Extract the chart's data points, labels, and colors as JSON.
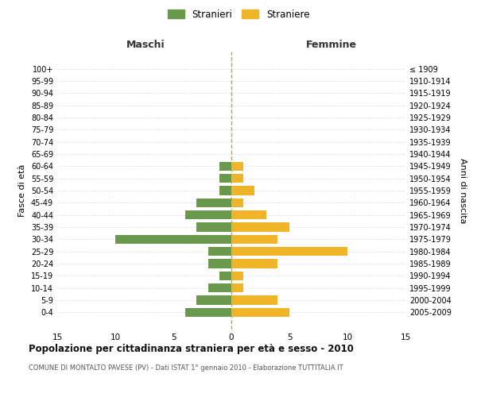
{
  "age_groups": [
    "100+",
    "95-99",
    "90-94",
    "85-89",
    "80-84",
    "75-79",
    "70-74",
    "65-69",
    "60-64",
    "55-59",
    "50-54",
    "45-49",
    "40-44",
    "35-39",
    "30-34",
    "25-29",
    "20-24",
    "15-19",
    "10-14",
    "5-9",
    "0-4"
  ],
  "birth_years": [
    "≤ 1909",
    "1910-1914",
    "1915-1919",
    "1920-1924",
    "1925-1929",
    "1930-1934",
    "1935-1939",
    "1940-1944",
    "1945-1949",
    "1950-1954",
    "1955-1959",
    "1960-1964",
    "1965-1969",
    "1970-1974",
    "1975-1979",
    "1980-1984",
    "1985-1989",
    "1990-1994",
    "1995-1999",
    "2000-2004",
    "2005-2009"
  ],
  "males": [
    0,
    0,
    0,
    0,
    0,
    0,
    0,
    0,
    1,
    1,
    1,
    3,
    4,
    3,
    10,
    2,
    2,
    1,
    2,
    3,
    4
  ],
  "females": [
    0,
    0,
    0,
    0,
    0,
    0,
    0,
    0,
    1,
    1,
    2,
    1,
    3,
    5,
    4,
    10,
    4,
    1,
    1,
    4,
    5
  ],
  "male_color": "#6a994e",
  "female_color": "#f0b429",
  "male_label": "Stranieri",
  "female_label": "Straniere",
  "title": "Popolazione per cittadinanza straniera per età e sesso - 2010",
  "subtitle": "COMUNE DI MONTALTO PAVESE (PV) - Dati ISTAT 1° gennaio 2010 - Elaborazione TUTTITALIA.IT",
  "left_header": "Maschi",
  "right_header": "Femmine",
  "left_ylabel": "Fasce di età",
  "right_ylabel": "Anni di nascita",
  "xlim": 15,
  "background_color": "#ffffff",
  "grid_color": "#cccccc",
  "grid_color2": "#dddddd"
}
